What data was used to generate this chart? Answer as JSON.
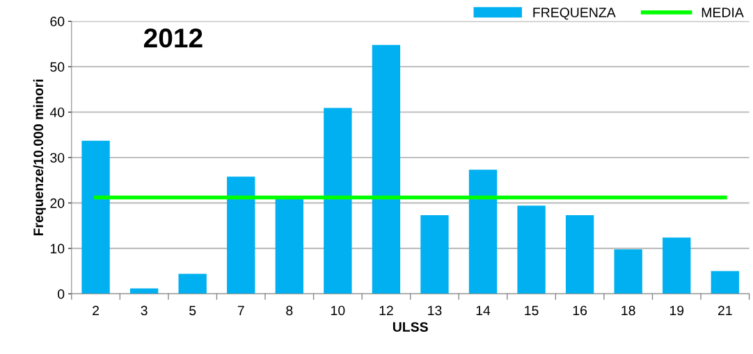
{
  "chart_data": {
    "type": "bar",
    "title": "2012",
    "xlabel": "ULSS",
    "ylabel": "Frequenze/10.000 minori",
    "categories": [
      "2",
      "3",
      "5",
      "7",
      "8",
      "10",
      "12",
      "13",
      "14",
      "15",
      "16",
      "18",
      "19",
      "21"
    ],
    "series": [
      {
        "name": "FREQUENZA",
        "color": "#00b0f0",
        "values": [
          33.7,
          1.2,
          4.4,
          25.8,
          20.9,
          40.9,
          54.8,
          17.3,
          27.3,
          19.4,
          17.3,
          9.8,
          12.4,
          5.0
        ]
      },
      {
        "name": "MEDIA",
        "type": "line",
        "color": "#00ff00",
        "values": [
          21.2,
          21.2,
          21.2,
          21.2,
          21.2,
          21.2,
          21.2,
          21.2,
          21.2,
          21.2,
          21.2,
          21.2,
          21.2,
          21.2
        ]
      }
    ],
    "ylim": [
      0,
      60
    ],
    "yticks": [
      0,
      10,
      20,
      30,
      40,
      50,
      60
    ],
    "grid": "y",
    "legend": "top right"
  }
}
